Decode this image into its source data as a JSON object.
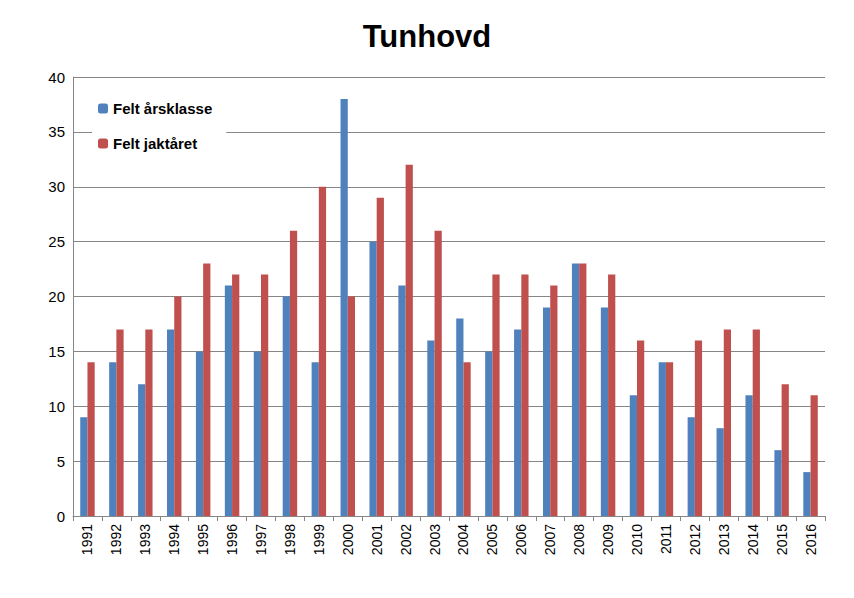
{
  "chart_data": {
    "type": "bar",
    "title": "Tunhovd",
    "categories": [
      "1991",
      "1992",
      "1993",
      "1994",
      "1995",
      "1996",
      "1997",
      "1998",
      "1999",
      "2000",
      "2001",
      "2002",
      "2003",
      "2004",
      "2005",
      "2006",
      "2007",
      "2008",
      "2009",
      "2010",
      "2011",
      "2012",
      "2013",
      "2014",
      "2015",
      "2016"
    ],
    "series": [
      {
        "name": "Felt årsklasse",
        "color": "#4f81bd",
        "values": [
          9,
          14,
          12,
          17,
          15,
          21,
          15,
          20,
          14,
          38,
          25,
          21,
          16,
          18,
          15,
          17,
          19,
          23,
          19,
          11,
          14,
          9,
          8,
          11,
          6,
          4
        ]
      },
      {
        "name": "Felt jaktåret",
        "color": "#c0504d",
        "values": [
          14,
          17,
          17,
          20,
          23,
          22,
          22,
          26,
          30,
          20,
          29,
          32,
          26,
          14,
          22,
          22,
          21,
          23,
          22,
          16,
          14,
          16,
          17,
          17,
          12,
          11
        ]
      }
    ],
    "ylim": [
      0,
      40
    ],
    "yticks": [
      0,
      5,
      10,
      15,
      20,
      25,
      30,
      35,
      40
    ],
    "grid": true,
    "legend": "upper left"
  }
}
